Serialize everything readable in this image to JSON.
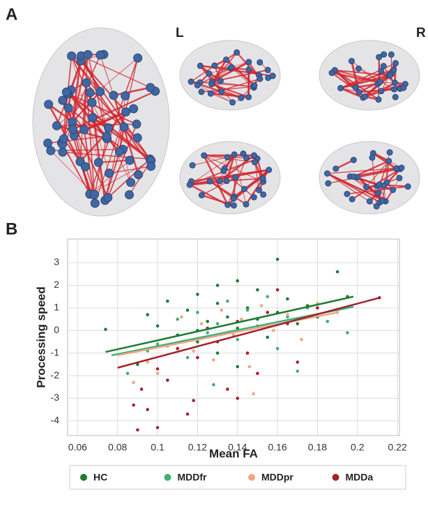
{
  "figure": {
    "panel_a": "A",
    "left": "L",
    "right": "R",
    "panel_b": "B"
  },
  "chart_data": {
    "type": "scatter",
    "xlabel": "Mean FA",
    "ylabel": "Processing speed",
    "xlim": [
      0.055,
      0.221
    ],
    "ylim": [
      -4.65,
      4.05
    ],
    "xticks": [
      0.06,
      0.08,
      0.1,
      0.12,
      0.14,
      0.16,
      0.18,
      0.2,
      0.22
    ],
    "yticks": [
      -4,
      -3,
      -2,
      -1,
      0,
      1,
      2,
      3
    ],
    "grid": true,
    "legend": "bottom",
    "series": [
      {
        "name": "HC",
        "color": "#1e7b34",
        "x": [
          0.074,
          0.09,
          0.095,
          0.1,
          0.105,
          0.11,
          0.115,
          0.12,
          0.12,
          0.125,
          0.13,
          0.13,
          0.135,
          0.14,
          0.14,
          0.145,
          0.15,
          0.15,
          0.155,
          0.16,
          0.16,
          0.165,
          0.17,
          0.175,
          0.18,
          0.19,
          0.195,
          0.12,
          0.13,
          0.14
        ],
        "y": [
          0.05,
          -1.5,
          0.7,
          0.2,
          1.3,
          -0.2,
          0.9,
          1.6,
          -0.5,
          0.4,
          1.2,
          -1.0,
          0.6,
          2.2,
          0.1,
          1.0,
          0.5,
          1.8,
          -0.3,
          3.15,
          0.8,
          1.4,
          0.3,
          1.1,
          0.6,
          2.6,
          1.5,
          0.0,
          2.0,
          -1.6
        ],
        "fit": {
          "x": [
            0.074,
            0.198
          ],
          "y": [
            -0.95,
            1.5
          ]
        }
      },
      {
        "name": "MDDfr",
        "color": "#3fae78",
        "x": [
          0.085,
          0.095,
          0.1,
          0.11,
          0.115,
          0.12,
          0.125,
          0.13,
          0.135,
          0.14,
          0.145,
          0.15,
          0.155,
          0.16,
          0.165,
          0.17,
          0.175,
          0.185,
          0.195,
          0.128
        ],
        "y": [
          -1.9,
          -0.9,
          -0.6,
          0.5,
          -1.2,
          0.8,
          -0.1,
          0.3,
          1.3,
          -0.4,
          0.9,
          0.2,
          1.5,
          -0.8,
          0.6,
          -1.8,
          1.0,
          0.4,
          -0.1,
          -2.4
        ],
        "fit": {
          "x": [
            0.077,
            0.198
          ],
          "y": [
            -1.1,
            1.05
          ]
        }
      },
      {
        "name": "MDDpr",
        "color": "#f0a584",
        "x": [
          0.088,
          0.095,
          0.1,
          0.105,
          0.112,
          0.118,
          0.122,
          0.128,
          0.132,
          0.138,
          0.142,
          0.148,
          0.152,
          0.158,
          0.165,
          0.172,
          0.18,
          0.19,
          0.146
        ],
        "y": [
          -2.3,
          -1.4,
          -1.9,
          -0.7,
          0.6,
          -0.9,
          0.3,
          -1.3,
          0.9,
          -0.2,
          0.5,
          -2.8,
          1.1,
          0.0,
          0.7,
          -0.4,
          1.2,
          0.8,
          -1.6
        ],
        "fit": {
          "x": [
            0.08,
            0.19
          ],
          "y": [
            -1.1,
            0.8
          ]
        }
      },
      {
        "name": "MDDa",
        "color": "#a3222a",
        "x": [
          0.088,
          0.09,
          0.092,
          0.095,
          0.1,
          0.1,
          0.105,
          0.11,
          0.115,
          0.12,
          0.125,
          0.13,
          0.135,
          0.14,
          0.145,
          0.15,
          0.155,
          0.16,
          0.165,
          0.17,
          0.18,
          0.211,
          0.118,
          0.14
        ],
        "y": [
          -3.3,
          -4.4,
          -2.6,
          -3.5,
          -4.3,
          -1.7,
          -2.2,
          -0.8,
          -3.7,
          -1.2,
          0.1,
          -0.5,
          -2.6,
          0.4,
          -1.0,
          -1.9,
          0.8,
          1.8,
          0.3,
          -1.4,
          1.0,
          1.45,
          -3.1,
          -3.0
        ],
        "fit": {
          "x": [
            0.08,
            0.211
          ],
          "y": [
            -1.65,
            1.45
          ]
        }
      }
    ]
  }
}
